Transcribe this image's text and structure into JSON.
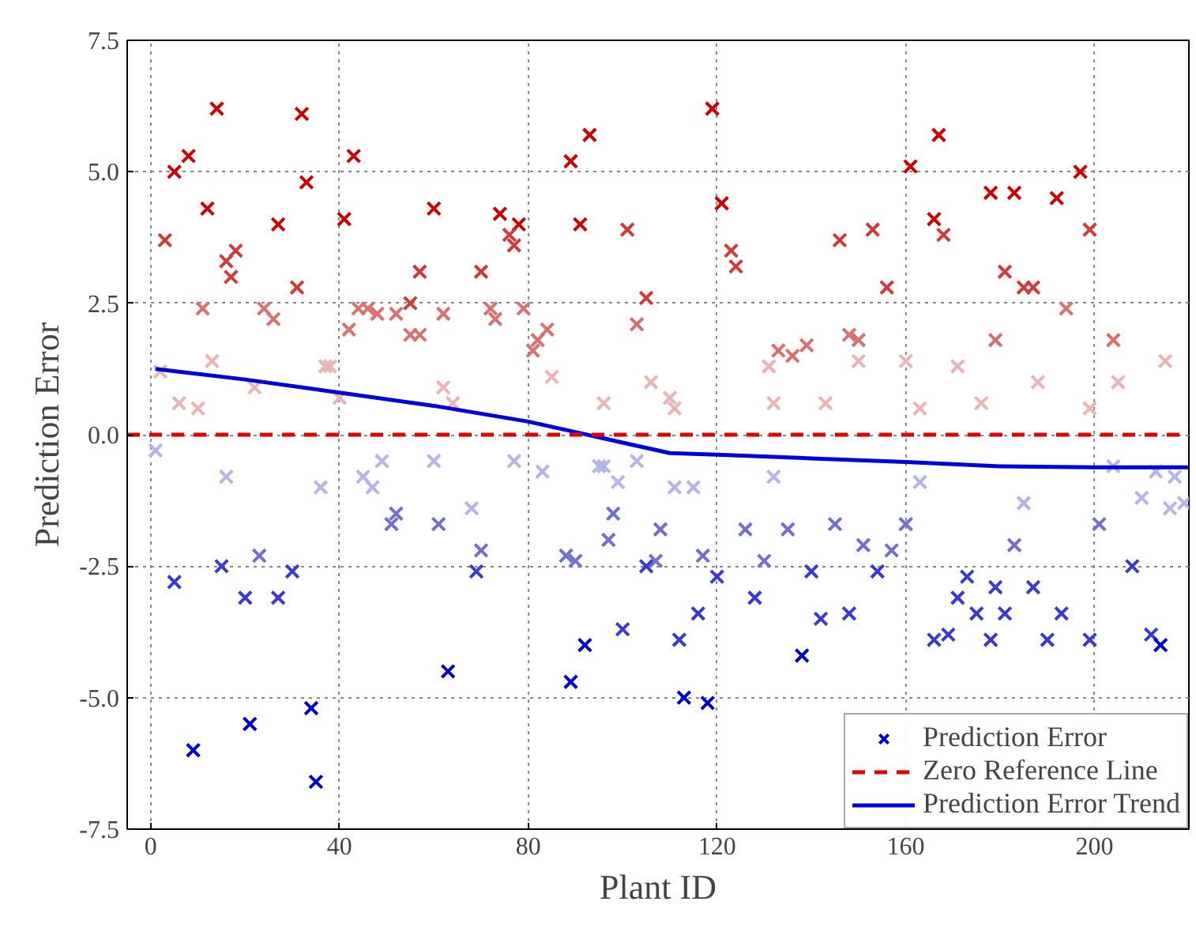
{
  "chart_data": {
    "type": "scatter",
    "xlabel": "Plant ID",
    "ylabel": "Prediction Error",
    "xlim": [
      -5,
      220
    ],
    "ylim": [
      -7.5,
      7.5
    ],
    "xticks": [
      0,
      40,
      80,
      120,
      160,
      200
    ],
    "yticks": [
      {
        "value": -7.5,
        "label": "-7.5"
      },
      {
        "value": -5,
        "label": "-5.0"
      },
      {
        "value": -2.5,
        "label": "-2.5"
      },
      {
        "value": 0,
        "label": "0.0"
      },
      {
        "value": 2.5,
        "label": "2.5"
      },
      {
        "value": 5,
        "label": "5.0"
      },
      {
        "value": 7.5,
        "label": "7.5"
      }
    ],
    "grid": true,
    "legend": "bottom right",
    "marker": "cross",
    "ref_lines": [
      {
        "axis": "y",
        "value": 0,
        "label": "Zero Reference Line",
        "color": "#e00000",
        "line_style": "dashed"
      }
    ],
    "series": [
      {
        "color": "#cc0000",
        "x": [
          5,
          8,
          12,
          14,
          27,
          32,
          33,
          41,
          43,
          60,
          74,
          78,
          89,
          91,
          93,
          119,
          121,
          161,
          166,
          167,
          178,
          183,
          192,
          197
        ],
        "values": [
          5.0,
          5.3,
          4.3,
          6.2,
          4.0,
          6.1,
          4.8,
          4.1,
          5.3,
          4.3,
          4.2,
          4.0,
          5.2,
          4.0,
          5.7,
          6.2,
          4.4,
          5.1,
          4.1,
          5.7,
          4.6,
          4.6,
          4.5,
          5.0
        ]
      },
      {
        "color": "#d03a3a",
        "x": [
          3,
          16,
          17,
          18,
          31,
          57,
          70,
          76,
          77,
          101,
          105,
          123,
          124,
          146,
          153,
          156,
          168,
          181,
          185,
          187,
          199,
          55
        ],
        "values": [
          3.7,
          3.3,
          3.0,
          3.5,
          2.8,
          3.1,
          3.1,
          3.8,
          3.6,
          3.9,
          2.6,
          3.5,
          3.2,
          3.7,
          3.9,
          2.8,
          3.8,
          3.1,
          2.8,
          2.8,
          3.9,
          2.5
        ]
      },
      {
        "color": "#d87070",
        "x": [
          11,
          24,
          26,
          44,
          42,
          46,
          48,
          52,
          55,
          57,
          62,
          72,
          73,
          79,
          81,
          82,
          84,
          103,
          133,
          136,
          139,
          148,
          150,
          179,
          194,
          204
        ],
        "values": [
          2.4,
          2.4,
          2.2,
          2.4,
          2.0,
          2.4,
          2.3,
          2.3,
          1.9,
          1.9,
          2.3,
          2.4,
          2.2,
          2.4,
          1.6,
          1.8,
          2.0,
          2.1,
          1.6,
          1.5,
          1.7,
          1.9,
          1.8,
          1.8,
          2.4,
          1.8
        ]
      },
      {
        "color": "#eab4b4",
        "x": [
          2,
          6,
          10,
          13,
          22,
          37,
          38,
          40,
          62,
          64,
          85,
          96,
          106,
          110,
          111,
          131,
          132,
          143,
          150,
          160,
          163,
          171,
          176,
          188,
          199,
          205,
          215
        ],
        "values": [
          1.2,
          0.6,
          0.5,
          1.4,
          0.9,
          1.3,
          1.3,
          0.7,
          0.9,
          0.6,
          1.1,
          0.6,
          1.0,
          0.7,
          0.5,
          1.3,
          0.6,
          0.6,
          1.4,
          1.4,
          0.5,
          1.3,
          0.6,
          1.0,
          0.5,
          1.0,
          1.4
        ]
      },
      {
        "color": "#b4b4e6",
        "x": [
          1,
          16,
          36,
          45,
          47,
          49,
          60,
          68,
          77,
          83,
          95,
          96,
          99,
          103,
          111,
          115,
          132,
          163,
          185,
          204,
          210,
          216,
          219,
          217,
          213
        ],
        "values": [
          -0.3,
          -0.8,
          -1.0,
          -0.8,
          -1.0,
          -0.5,
          -0.5,
          -1.4,
          -0.5,
          -0.7,
          -0.6,
          -0.6,
          -0.9,
          -0.5,
          -1.0,
          -1.0,
          -0.8,
          -0.9,
          -1.3,
          -0.6,
          -1.2,
          -1.4,
          -1.3,
          -0.8,
          -0.7
        ]
      },
      {
        "color": "#7070d0",
        "x": [
          52,
          51,
          61,
          70,
          88,
          90,
          97,
          98,
          107,
          108,
          117,
          126,
          130,
          135,
          145,
          151,
          157,
          160,
          183,
          201,
          23
        ],
        "values": [
          -1.5,
          -1.7,
          -1.7,
          -2.2,
          -2.3,
          -2.4,
          -2.0,
          -1.5,
          -2.4,
          -1.8,
          -2.3,
          -1.8,
          -2.4,
          -1.8,
          -1.7,
          -2.1,
          -2.2,
          -1.7,
          -2.1,
          -1.7,
          -2.3
        ]
      },
      {
        "color": "#3a3ad0",
        "x": [
          5,
          15,
          20,
          27,
          30,
          69,
          100,
          105,
          112,
          116,
          120,
          128,
          140,
          142,
          148,
          154,
          166,
          169,
          171,
          173,
          175,
          178,
          179,
          181,
          187,
          190,
          193,
          199,
          208,
          212
        ],
        "values": [
          -2.8,
          -2.5,
          -3.1,
          -3.1,
          -2.6,
          -2.6,
          -3.7,
          -2.5,
          -3.9,
          -3.4,
          -2.7,
          -3.1,
          -2.6,
          -3.5,
          -3.4,
          -2.6,
          -3.9,
          -3.8,
          -3.1,
          -2.7,
          -3.4,
          -3.9,
          -2.9,
          -3.4,
          -2.9,
          -3.9,
          -3.4,
          -3.9,
          -2.5,
          -3.8
        ]
      },
      {
        "name": "Prediction Error",
        "color": "#0000cc",
        "x": [
          9,
          21,
          34,
          35,
          63,
          89,
          92,
          113,
          118,
          138,
          214
        ],
        "values": [
          -6.0,
          -5.5,
          -5.2,
          -6.6,
          -4.5,
          -4.7,
          -4.0,
          -5.0,
          -5.1,
          -4.2,
          -4.0
        ]
      },
      {
        "name": "Prediction Error Trend",
        "type": "line",
        "color": "#0000dd",
        "marker": "none",
        "x": [
          1,
          20,
          40,
          60,
          80,
          90,
          100,
          110,
          120,
          140,
          160,
          180,
          200,
          220
        ],
        "values": [
          1.25,
          1.05,
          0.8,
          0.55,
          0.25,
          0.05,
          -0.15,
          -0.35,
          -0.38,
          -0.45,
          -0.52,
          -0.6,
          -0.62,
          -0.62
        ]
      }
    ]
  }
}
